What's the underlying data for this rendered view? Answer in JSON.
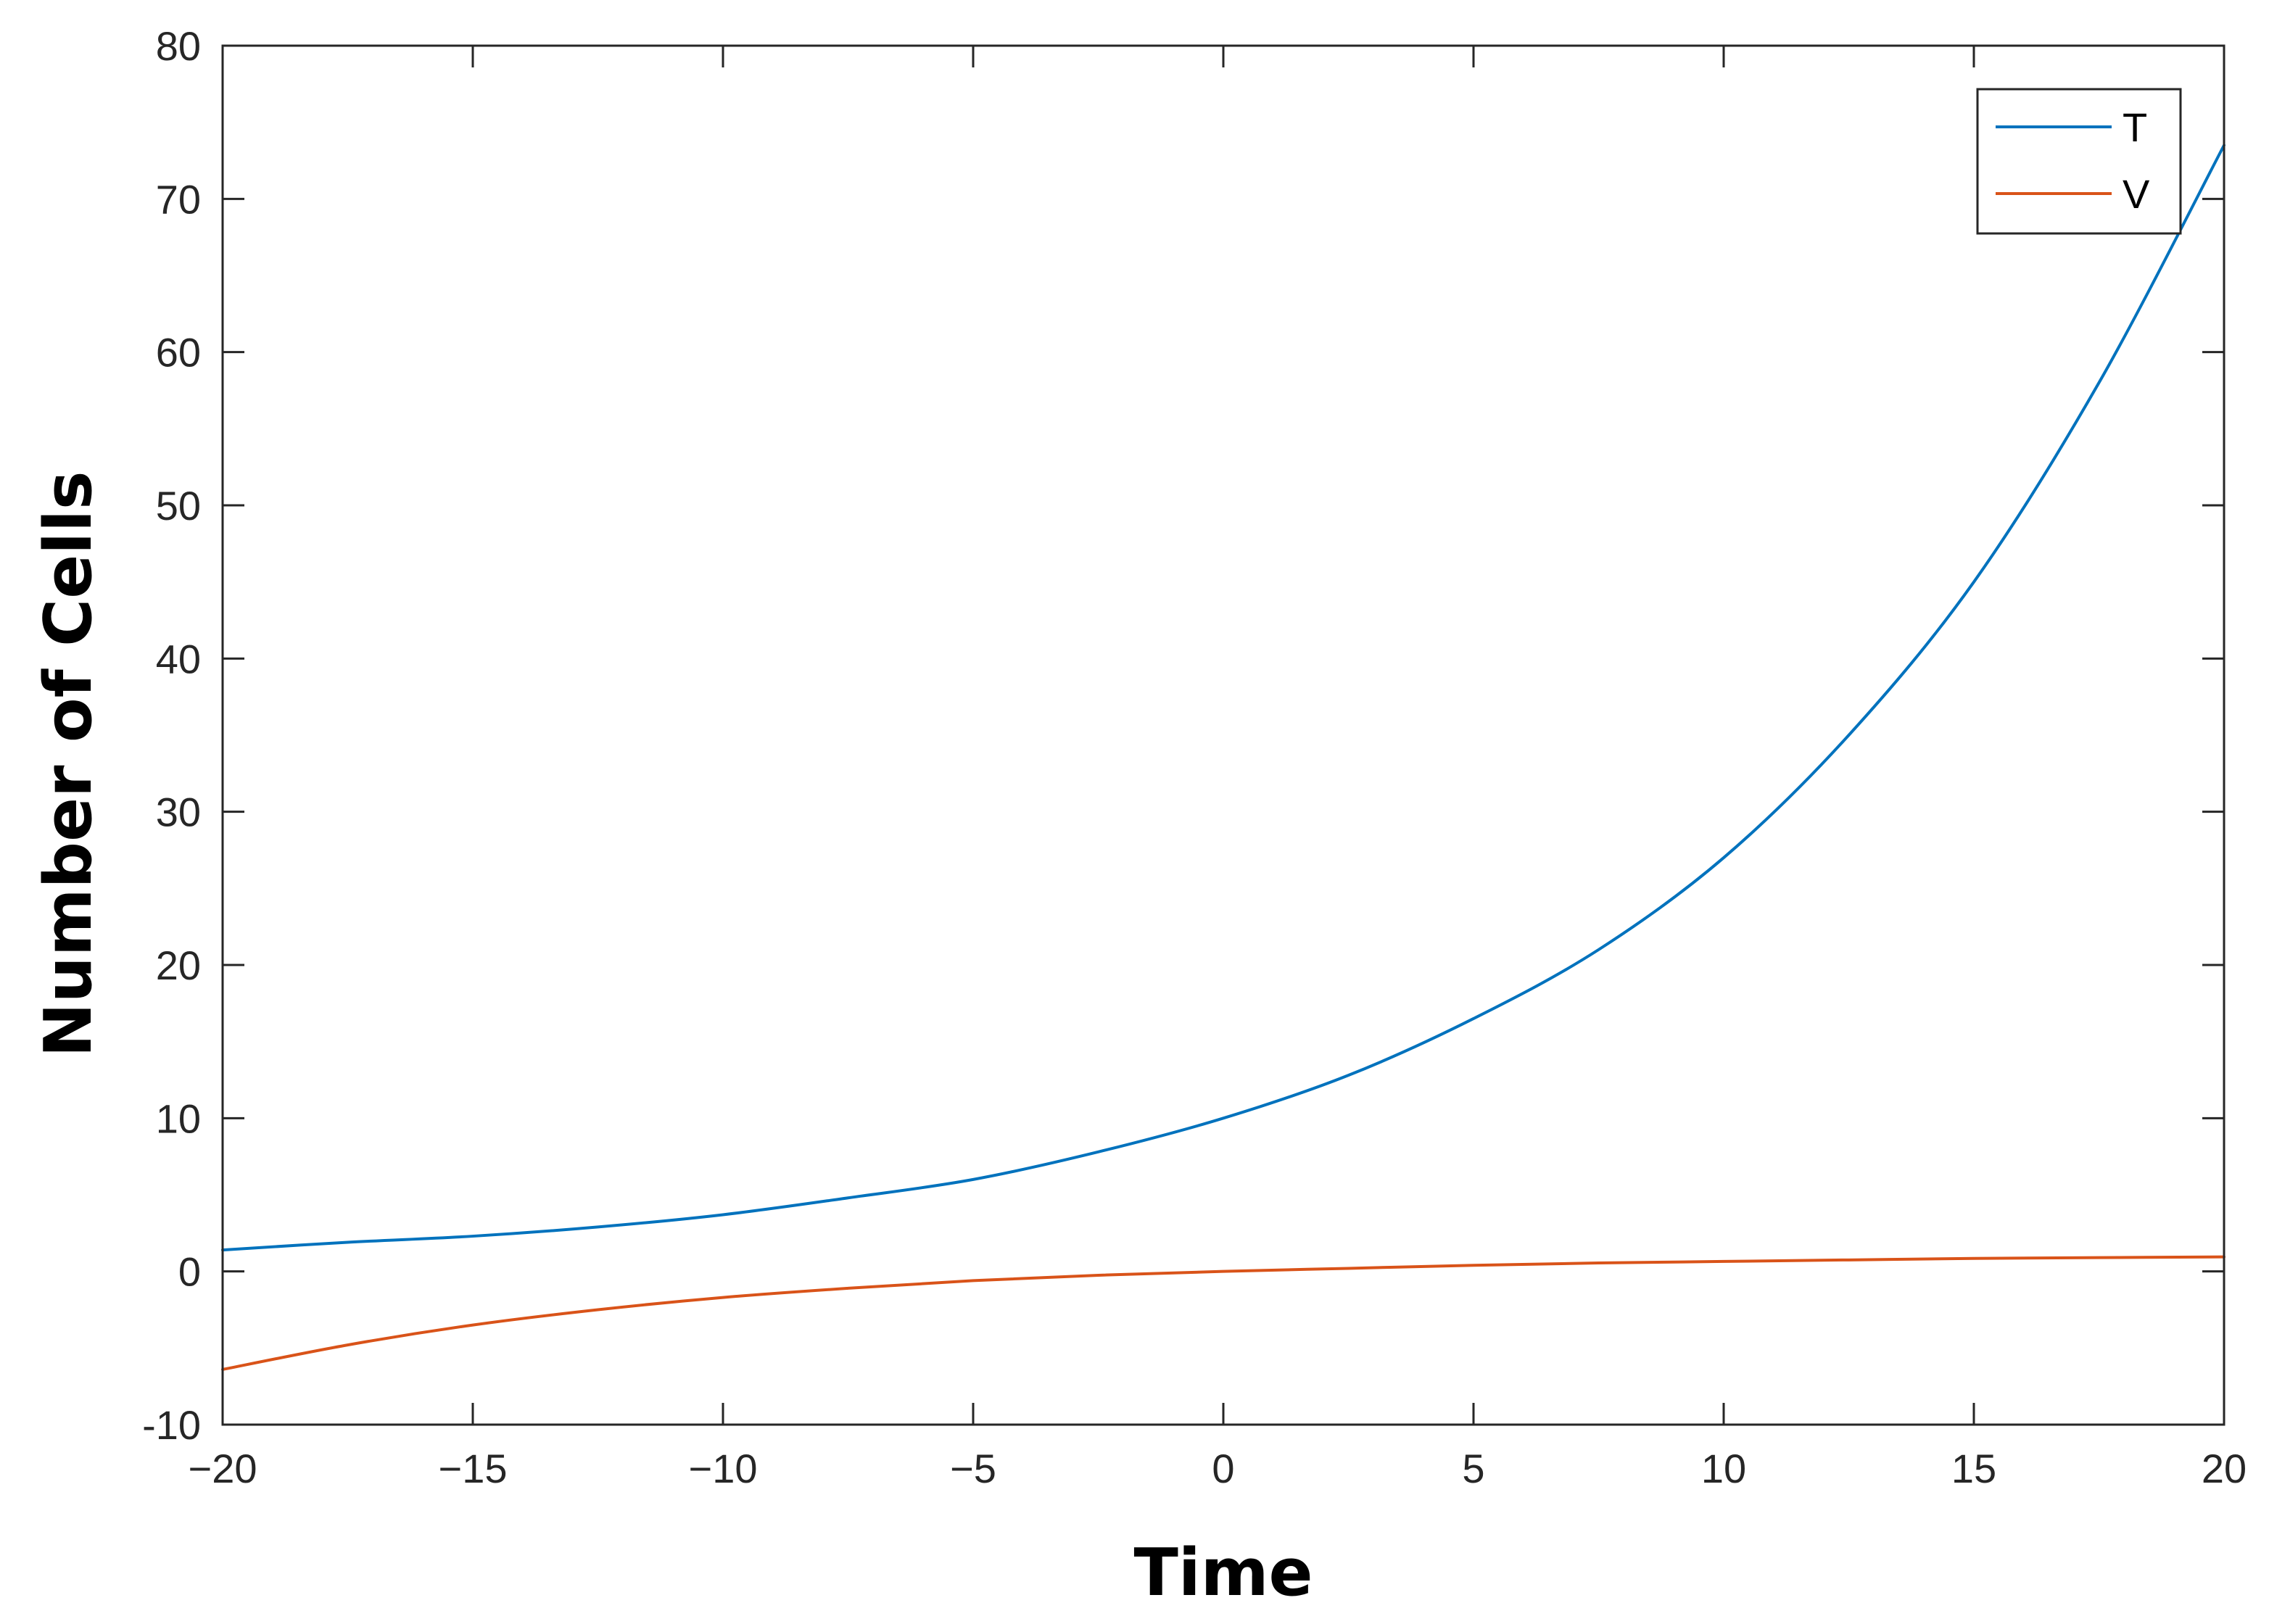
{
  "chart_data": {
    "type": "line",
    "title": "",
    "xlabel": "Time",
    "ylabel": "Number of Cells",
    "xlim": [
      -20,
      20
    ],
    "ylim": [
      -10,
      80
    ],
    "xticks": [
      -20,
      -15,
      -10,
      -5,
      0,
      5,
      10,
      15,
      20
    ],
    "xtick_labels": [
      "−20",
      "−15",
      "−10",
      "−5",
      "0",
      "5",
      "10",
      "15",
      "20"
    ],
    "yticks": [
      -10,
      0,
      10,
      20,
      30,
      40,
      50,
      60,
      70,
      80
    ],
    "ytick_labels": [
      "-10",
      "0",
      "10",
      "20",
      "30",
      "40",
      "50",
      "60",
      "70",
      "80"
    ],
    "grid": false,
    "legend": "top-right",
    "x": [
      -20,
      -17.5,
      -15,
      -12.5,
      -10,
      -7.5,
      -5,
      -2.5,
      0,
      2.5,
      5,
      7.5,
      10,
      12.5,
      15,
      17.5,
      20
    ],
    "series": [
      {
        "name": "T",
        "color": "#0072BD",
        "values": [
          1.4,
          1.9,
          2.3,
          2.9,
          3.7,
          4.8,
          6.0,
          7.8,
          10.0,
          12.8,
          16.5,
          21.0,
          27.0,
          35.0,
          45.0,
          58.0,
          73.5
        ]
      },
      {
        "name": "V",
        "color": "#D95319",
        "values": [
          -6.4,
          -4.8,
          -3.5,
          -2.5,
          -1.7,
          -1.1,
          -0.6,
          -0.25,
          0.0,
          0.2,
          0.4,
          0.55,
          0.65,
          0.75,
          0.85,
          0.9,
          0.95
        ]
      }
    ]
  }
}
